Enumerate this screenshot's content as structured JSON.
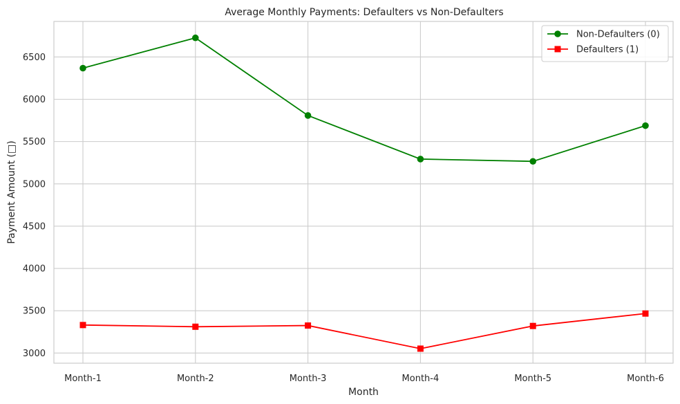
{
  "chart_data": {
    "type": "line",
    "title": "Average Monthly Payments: Defaulters vs Non-Defaulters",
    "xlabel": "Month",
    "ylabel": "Payment Amount (□)",
    "categories": [
      "Month-1",
      "Month-2",
      "Month-3",
      "Month-4",
      "Month-5",
      "Month-6"
    ],
    "ylim": [
      2880,
      6920
    ],
    "yticks": [
      3000,
      3500,
      4000,
      4500,
      5000,
      5500,
      6000,
      6500
    ],
    "grid": true,
    "legend_position": "top-right",
    "series": [
      {
        "name": "Non-Defaulters (0)",
        "color": "#008000",
        "marker": "circle",
        "values": [
          6368,
          6726,
          5808,
          5293,
          5266,
          5688
        ]
      },
      {
        "name": "Defaulters (1)",
        "color": "#ff0000",
        "marker": "square",
        "values": [
          3331,
          3311,
          3325,
          3052,
          3320,
          3467
        ]
      }
    ]
  }
}
